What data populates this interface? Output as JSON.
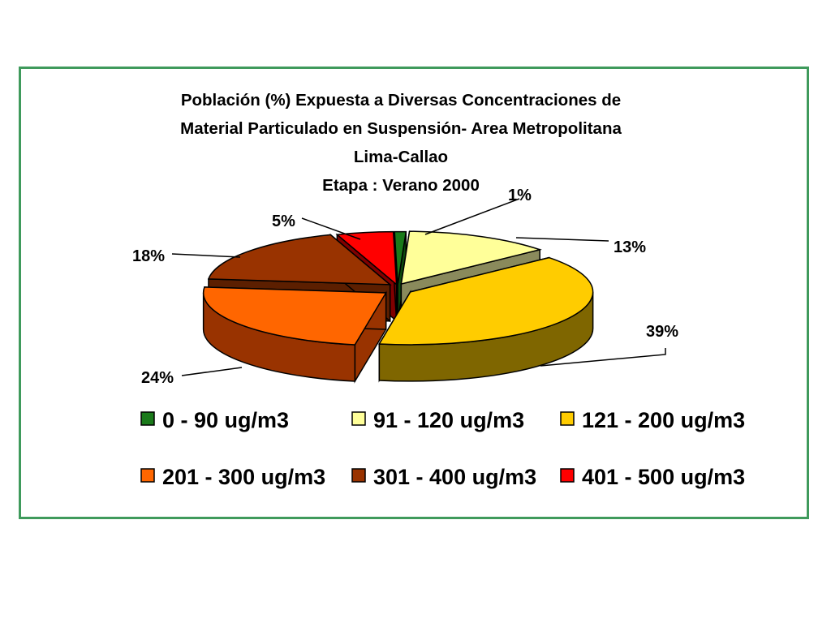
{
  "chart_data": {
    "type": "pie",
    "title": "Población (%) Expuesta a Diversas Concentraciones de Material Particulado en Suspensión- Area Metropolitana Lima-Callao",
    "title_lines": [
      "Población (%) Expuesta a Diversas Concentraciones de",
      "Material Particulado en Suspensión- Area Metropolitana",
      "Lima-Callao"
    ],
    "subtitle": "Etapa : Verano 2000",
    "legend_position": "bottom",
    "slices": [
      {
        "name": "0 - 90 ug/m3",
        "value": 1,
        "label": "1%",
        "color": "#1a7a1a",
        "side_color": "#0d4a0d"
      },
      {
        "name": "91 - 120 ug/m3",
        "value": 13,
        "label": "13%",
        "color": "#ffff99",
        "side_color": "#8a8a5c"
      },
      {
        "name": "121 - 200 ug/m3",
        "value": 39,
        "label": "39%",
        "color": "#ffcc00",
        "side_color": "#7f6600"
      },
      {
        "name": "201 - 300 ug/m3",
        "value": 24,
        "label": "24%",
        "color": "#ff6600",
        "side_color": "#993300"
      },
      {
        "name": "301 - 400 ug/m3",
        "value": 18,
        "label": "18%",
        "color": "#993300",
        "side_color": "#5c1f00"
      },
      {
        "name": "401 - 500 ug/m3",
        "value": 5,
        "label": "5%",
        "color": "#ff0000",
        "side_color": "#800000"
      }
    ]
  }
}
